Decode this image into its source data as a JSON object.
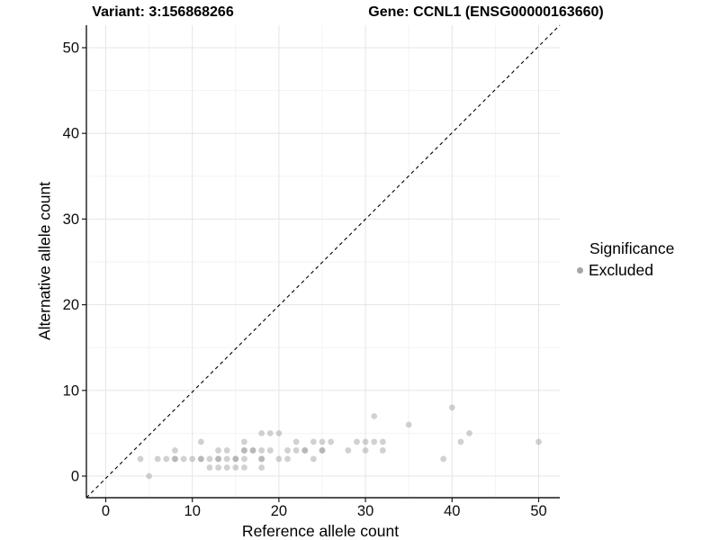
{
  "titles": {
    "variant": "Variant: 3:156868266",
    "gene": "Gene: CCNL1 (ENSG00000163660)"
  },
  "axes": {
    "x": {
      "label": "Reference allele count",
      "ticks": [
        0,
        10,
        20,
        30,
        40,
        50
      ],
      "minor_ticks": [
        5,
        15,
        25,
        35,
        45
      ]
    },
    "y": {
      "label": "Alternative allele count",
      "ticks": [
        0,
        10,
        20,
        30,
        40,
        50
      ],
      "minor_ticks": [
        5,
        15,
        25,
        35,
        45
      ]
    }
  },
  "legend": {
    "title": "Significance",
    "items": [
      {
        "label": "Excluded",
        "color": "#a6a6a6"
      }
    ]
  },
  "chart_data": {
    "type": "scatter",
    "title": "",
    "xlabel": "Reference allele count",
    "ylabel": "Alternative allele count",
    "xlim": [
      -2.3,
      52.5
    ],
    "ylim": [
      -2.5,
      52.7
    ],
    "grid": true,
    "legend_position": "right",
    "reference_line": {
      "kind": "identity y=x",
      "style": "dashed",
      "color": "#000000"
    },
    "series": [
      {
        "name": "Excluded",
        "color": "#9a9a9a",
        "opacity": 0.45,
        "points": [
          [
            4,
            2
          ],
          [
            5,
            0
          ],
          [
            6,
            2
          ],
          [
            7,
            2
          ],
          [
            8,
            2
          ],
          [
            8,
            2
          ],
          [
            8,
            3
          ],
          [
            9,
            2
          ],
          [
            10,
            2
          ],
          [
            11,
            2
          ],
          [
            11,
            2
          ],
          [
            11,
            4
          ],
          [
            12,
            1
          ],
          [
            12,
            2
          ],
          [
            13,
            1
          ],
          [
            13,
            2
          ],
          [
            13,
            2
          ],
          [
            13,
            3
          ],
          [
            14,
            1
          ],
          [
            14,
            2
          ],
          [
            14,
            3
          ],
          [
            15,
            1
          ],
          [
            15,
            2
          ],
          [
            15,
            2
          ],
          [
            16,
            1
          ],
          [
            16,
            2
          ],
          [
            16,
            3
          ],
          [
            16,
            3
          ],
          [
            16,
            4
          ],
          [
            17,
            3
          ],
          [
            17,
            3
          ],
          [
            18,
            1
          ],
          [
            18,
            2
          ],
          [
            18,
            2
          ],
          [
            18,
            3
          ],
          [
            18,
            5
          ],
          [
            19,
            3
          ],
          [
            19,
            5
          ],
          [
            20,
            2
          ],
          [
            20,
            5
          ],
          [
            21,
            2
          ],
          [
            21,
            3
          ],
          [
            22,
            3
          ],
          [
            22,
            4
          ],
          [
            23,
            3
          ],
          [
            23,
            3
          ],
          [
            24,
            2
          ],
          [
            24,
            4
          ],
          [
            25,
            3
          ],
          [
            25,
            3
          ],
          [
            25,
            4
          ],
          [
            26,
            4
          ],
          [
            28,
            3
          ],
          [
            29,
            4
          ],
          [
            30,
            3
          ],
          [
            30,
            4
          ],
          [
            31,
            4
          ],
          [
            31,
            7
          ],
          [
            32,
            3
          ],
          [
            32,
            4
          ],
          [
            35,
            6
          ],
          [
            39,
            2
          ],
          [
            40,
            8
          ],
          [
            41,
            4
          ],
          [
            42,
            5
          ],
          [
            50,
            4
          ]
        ]
      }
    ]
  },
  "style": {
    "background": "#ffffff",
    "grid_major": "#e5e5e5",
    "grid_minor": "#f2f2f2",
    "axis_line": "#1a1a1a",
    "tick_text": "#0d0d0d",
    "point_fill": "#9a9a9a",
    "dashed_line": "#000000"
  }
}
